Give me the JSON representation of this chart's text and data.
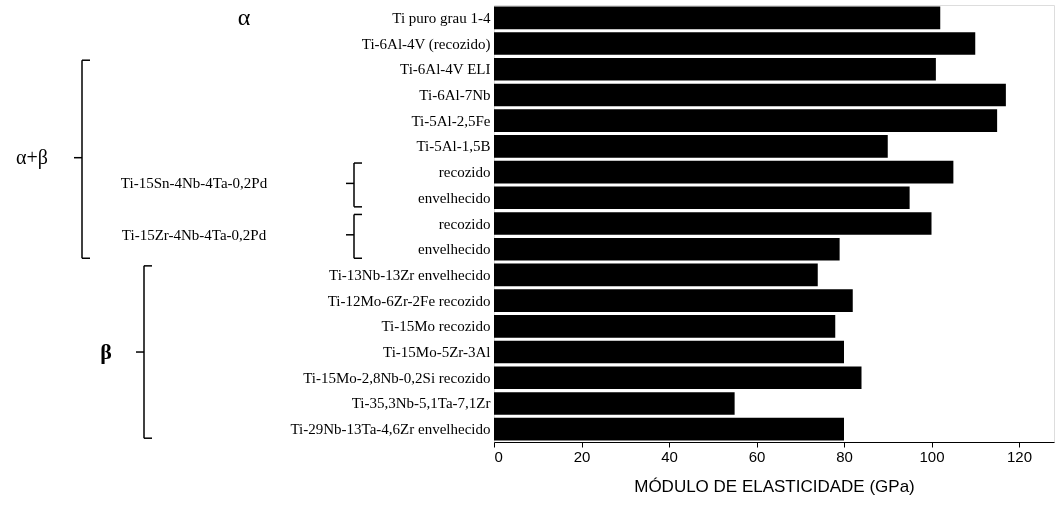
{
  "chart_data": {
    "type": "bar",
    "orientation": "horizontal",
    "xlabel": "MÓDULO DE ELASTICIDADE (GPa)",
    "categories": [
      "Ti puro grau 1-4",
      "Ti-6Al-4V (recozido)",
      "Ti-6Al-4V ELI",
      "Ti-6Al-7Nb",
      "Ti-5Al-2,5Fe",
      "Ti-5Al-1,5B",
      "recozido",
      "envelhecido",
      "recozido",
      "envelhecido",
      "Ti-13Nb-13Zr envelhecido",
      "Ti-12Mo-6Zr-2Fe recozido",
      "Ti-15Mo recozido",
      "Ti-15Mo-5Zr-3Al",
      "Ti-15Mo-2,8Nb-0,2Si  recozido",
      "Ti-35,3Nb-5,1Ta-7,1Zr",
      "Ti-29Nb-13Ta-4,6Zr envelhecido"
    ],
    "values": [
      102,
      110,
      101,
      117,
      115,
      90,
      105,
      95,
      100,
      79,
      74,
      82,
      78,
      80,
      84,
      55,
      80
    ],
    "color": "#000000",
    "xlim": [
      0,
      128
    ],
    "xticks": [
      0,
      20,
      40,
      60,
      80,
      100,
      120
    ],
    "grid": false,
    "annotations": [
      "α",
      "α+β",
      "β",
      "Ti-15Sn-4Nb-4Ta-0,2Pd",
      "Ti-15Zr-4Nb-4Ta-0,2Pd"
    ]
  }
}
